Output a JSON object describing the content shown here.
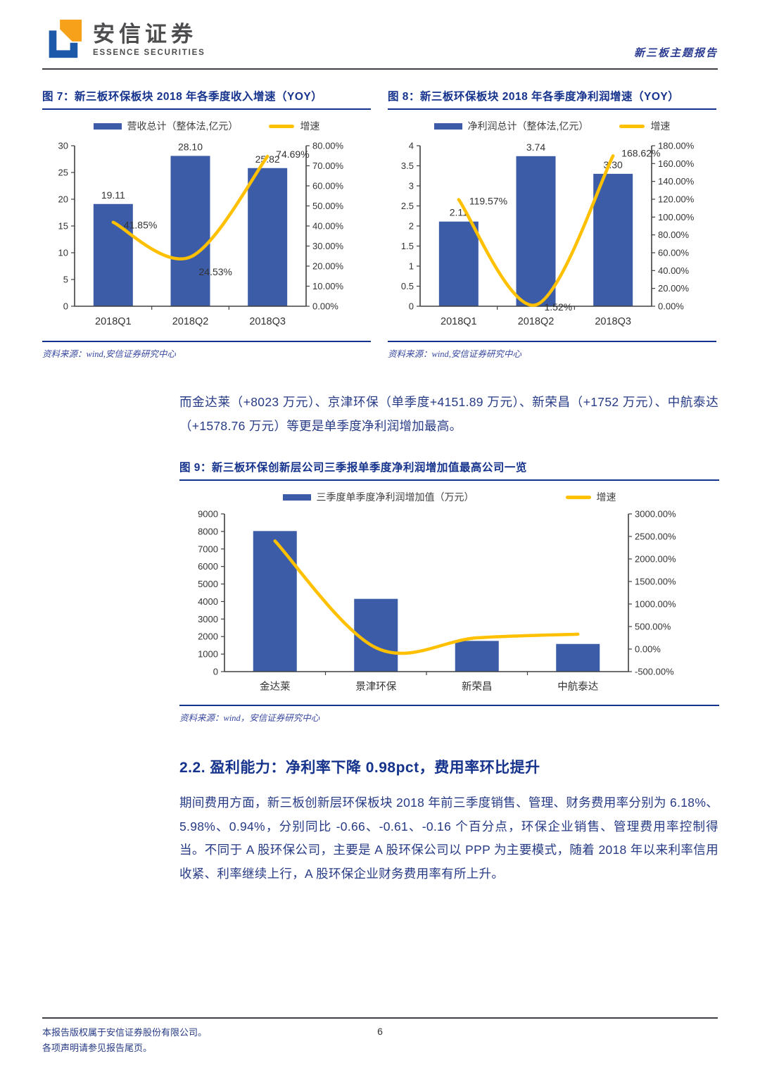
{
  "colors": {
    "accent": "#15338c",
    "bar": "#3c5ca8",
    "line": "#ffc000",
    "body_text": "#263a85"
  },
  "header": {
    "brand_cn": "安信证券",
    "brand_en": "ESSENCE SECURITIES",
    "report_type": "新三板主题报告"
  },
  "figures": [
    {
      "title": "图 7：新三板环保板块 2018 年各季度收入增速（YOY）",
      "legend_bar": "营收总计（整体法,亿元）",
      "legend_line": "增速",
      "source": "资料来源：wind,安信证券研究中心"
    },
    {
      "title": "图 8：新三板环保板块 2018 年各季度净利润增速（YOY）",
      "legend_bar": "净利润总计（整体法,亿元）",
      "legend_line": "增速",
      "source": "资料来源：wind,安信证券研究中心"
    },
    {
      "title": "图 9：新三板环保创新层公司三季报单季度净利润增加值最高公司一览",
      "legend_bar": "三季度单季度净利润增加值（万元）",
      "legend_line": "增速",
      "source": "资料来源：wind，安信证券研究中心"
    }
  ],
  "paragraphs": [
    "而金达莱（+8023 万元）、京津环保（单季度+4151.89 万元）、新荣昌（+1752 万元）、中航泰达（+1578.76 万元）等更是单季度净利润增加最高。",
    "期间费用方面，新三板创新层环保板块 2018 年前三季度销售、管理、财务费用率分别为 6.18%、5.98%、0.94%，分别同比 -0.66、-0.61、-0.16 个百分点，环保企业销售、管理费用率控制得当。不同于 A 股环保公司，主要是 A 股环保公司以 PPP 为主要模式，随着 2018 年以来利率信用收紧、利率继续上行，A 股环保企业财务费用率有所上升。"
  ],
  "section": {
    "heading": "2.2. 盈利能力：净利率下降 0.98pct，费用率环比提升"
  },
  "footer": {
    "copyright_line1": "本报告版权属于安信证券股份有限公司。",
    "copyright_line2": "各项声明请参见报告尾页。",
    "page_number": "6"
  },
  "chart_data": [
    {
      "id": "fig7",
      "type": "bar",
      "subtype": "bar+line combo, dual axis",
      "title": "图 7：新三板环保板块 2018 年各季度收入增速（YOY）",
      "categories": [
        "2018Q1",
        "2018Q2",
        "2018Q3"
      ],
      "series": [
        {
          "name": "营收总计（整体法,亿元）",
          "type": "bar",
          "axis": "left",
          "values": [
            19.11,
            28.1,
            25.82
          ],
          "labels": [
            "19.11",
            "28.10",
            "25.82"
          ]
        },
        {
          "name": "增速",
          "type": "line",
          "axis": "right",
          "values": [
            41.85,
            24.53,
            74.69
          ],
          "labels": [
            "41.85%",
            "24.53%",
            "74.69%"
          ]
        }
      ],
      "left_axis": {
        "min": 0,
        "max": 30,
        "step": 5,
        "ticks": [
          "0",
          "5",
          "10",
          "15",
          "20",
          "25",
          "30"
        ]
      },
      "right_axis": {
        "min": 0,
        "max": 80,
        "step": 10,
        "ticks": [
          "0.00%",
          "10.00%",
          "20.00%",
          "30.00%",
          "40.00%",
          "50.00%",
          "60.00%",
          "70.00%",
          "80.00%"
        ]
      },
      "grid": false,
      "legend_position": "top"
    },
    {
      "id": "fig8",
      "type": "bar",
      "subtype": "bar+line combo, dual axis",
      "title": "图 8：新三板环保板块 2018 年各季度净利润增速（YOY）",
      "categories": [
        "2018Q1",
        "2018Q2",
        "2018Q3"
      ],
      "series": [
        {
          "name": "净利润总计（整体法,亿元）",
          "type": "bar",
          "axis": "left",
          "values": [
            2.11,
            3.74,
            3.3
          ],
          "labels": [
            "2.11",
            "3.74",
            "3.30"
          ]
        },
        {
          "name": "增速",
          "type": "line",
          "axis": "right",
          "values": [
            119.57,
            1.52,
            168.62
          ],
          "labels": [
            "119.57%",
            "1.52%",
            "168.62%"
          ]
        }
      ],
      "left_axis": {
        "min": 0,
        "max": 4,
        "step": 0.5,
        "ticks": [
          "0",
          "0.5",
          "1",
          "1.5",
          "2",
          "2.5",
          "3",
          "3.5",
          "4"
        ]
      },
      "right_axis": {
        "min": 0,
        "max": 180,
        "step": 20,
        "ticks": [
          "0.00%",
          "20.00%",
          "40.00%",
          "60.00%",
          "80.00%",
          "100.00%",
          "120.00%",
          "140.00%",
          "160.00%",
          "180.00%"
        ]
      },
      "grid": false,
      "legend_position": "top"
    },
    {
      "id": "fig9",
      "type": "bar",
      "subtype": "bar+line combo, dual axis",
      "title": "图 9：新三板环保创新层公司三季报单季度净利润增加值最高公司一览",
      "categories": [
        "金达莱",
        "景津环保",
        "新荣昌",
        "中航泰达"
      ],
      "series": [
        {
          "name": "三季度单季度净利润增加值（万元）",
          "type": "bar",
          "axis": "left",
          "values": [
            8023,
            4151.89,
            1752,
            1578.76
          ],
          "labels": null
        },
        {
          "name": "增速",
          "type": "line",
          "axis": "right",
          "values": [
            2400,
            30,
            250,
            330
          ],
          "labels": null
        }
      ],
      "left_axis": {
        "min": 0,
        "max": 9000,
        "step": 1000,
        "ticks": [
          "0",
          "1000",
          "2000",
          "3000",
          "4000",
          "5000",
          "6000",
          "7000",
          "8000",
          "9000"
        ]
      },
      "right_axis": {
        "min": -500,
        "max": 3000,
        "step": 500,
        "ticks": [
          "-500.00%",
          "0.00%",
          "500.00%",
          "1000.00%",
          "1500.00%",
          "2000.00%",
          "2500.00%",
          "3000.00%"
        ]
      },
      "grid": false,
      "legend_position": "top"
    }
  ]
}
